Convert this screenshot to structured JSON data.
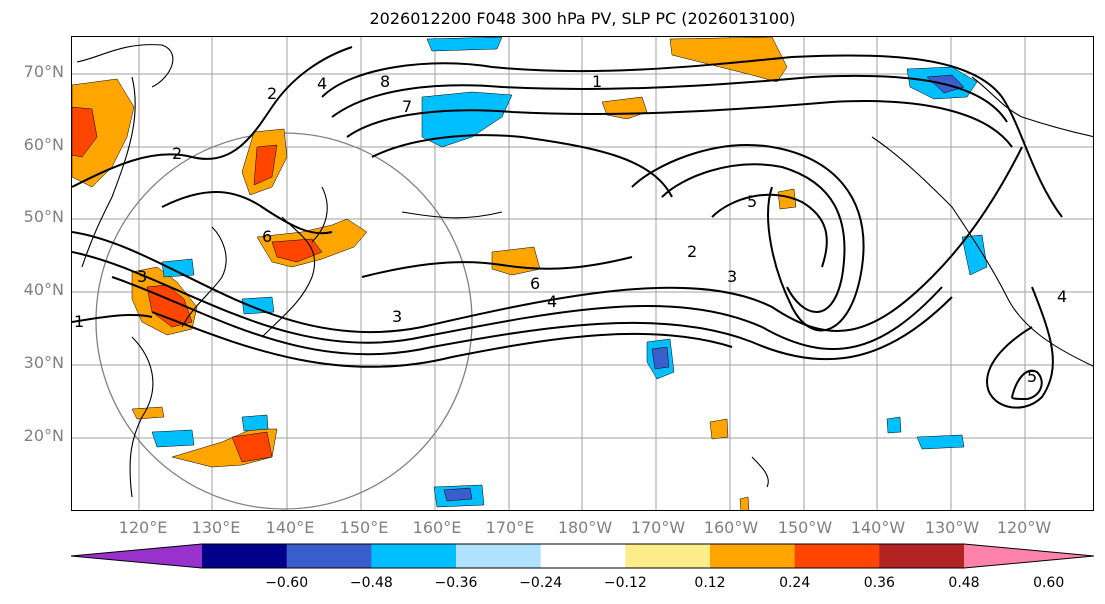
{
  "title": "2026012200 F048 300 hPa PV, SLP PC (2026013100)",
  "lat_labels": [
    "70°N",
    "60°N",
    "50°N",
    "40°N",
    "30°N",
    "20°N"
  ],
  "lon_labels": [
    "120°E",
    "130°E",
    "140°E",
    "150°E",
    "160°E",
    "170°E",
    "180°W",
    "170°W",
    "160°W",
    "150°W",
    "140°W",
    "130°W",
    "120°W"
  ],
  "colorbar": {
    "ticks": [
      "−0.60",
      "−0.48",
      "−0.36",
      "−0.24",
      "−0.12",
      "0.12",
      "0.24",
      "0.36",
      "0.48",
      "0.60"
    ],
    "colors": [
      "#9932cc",
      "#00008b",
      "#3a5fcd",
      "#00bfff",
      "#b0e2ff",
      "#ffffff",
      "#ffec8b",
      "#ffa500",
      "#ff4500",
      "#b22222",
      "#ff82ab"
    ]
  },
  "contour_labels": [
    "1",
    "2",
    "2",
    "3",
    "3",
    "4",
    "4",
    "5",
    "5",
    "6",
    "6",
    "7",
    "8",
    "2",
    "3",
    "4",
    "1"
  ],
  "colors": {
    "grid": "#a0a0a0",
    "range_ring": "#808080",
    "contour": "#000000"
  }
}
